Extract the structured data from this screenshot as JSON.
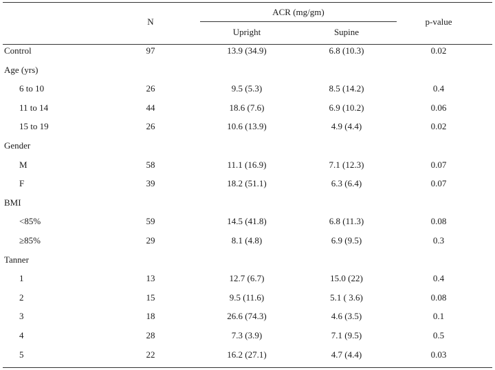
{
  "header": {
    "n": "N",
    "acr_group": "ACR (mg/gm)",
    "upright": "Upright",
    "supine": "Supine",
    "pvalue": "p-value"
  },
  "rows": [
    {
      "label": "Control",
      "indent": false,
      "n": "97",
      "upright": "13.9 (34.9)",
      "supine": "6.8 (10.3)",
      "p": "0.02"
    },
    {
      "label": "Age (yrs)",
      "indent": false,
      "n": "",
      "upright": "",
      "supine": "",
      "p": ""
    },
    {
      "label": "6 to 10",
      "indent": true,
      "n": "26",
      "upright": "9.5 (5.3)",
      "supine": "8.5 (14.2)",
      "p": "0.4"
    },
    {
      "label": "11 to 14",
      "indent": true,
      "n": "44",
      "upright": "18.6 (7.6)",
      "supine": "6.9 (10.2)",
      "p": "0.06"
    },
    {
      "label": "15 to 19",
      "indent": true,
      "n": "26",
      "upright": "10.6 (13.9)",
      "supine": "4.9 (4.4)",
      "p": "0.02"
    },
    {
      "label": "Gender",
      "indent": false,
      "n": "",
      "upright": "",
      "supine": "",
      "p": ""
    },
    {
      "label": "M",
      "indent": true,
      "n": "58",
      "upright": "11.1 (16.9)",
      "supine": "7.1 (12.3)",
      "p": "0.07"
    },
    {
      "label": "F",
      "indent": true,
      "n": "39",
      "upright": "18.2 (51.1)",
      "supine": "6.3 (6.4)",
      "p": "0.07"
    },
    {
      "label": "BMI",
      "indent": false,
      "n": "",
      "upright": "",
      "supine": "",
      "p": ""
    },
    {
      "label": "<85%",
      "indent": true,
      "n": "59",
      "upright": "14.5 (41.8)",
      "supine": "6.8 (11.3)",
      "p": "0.08"
    },
    {
      "label": "≥85%",
      "indent": true,
      "n": "29",
      "upright": "8.1 (4.8)",
      "supine": "6.9 (9.5)",
      "p": "0.3"
    },
    {
      "label": "Tanner",
      "indent": false,
      "n": "",
      "upright": "",
      "supine": "",
      "p": ""
    },
    {
      "label": "1",
      "indent": true,
      "n": "13",
      "upright": "12.7 (6.7)",
      "supine": "15.0 (22)",
      "p": "0.4"
    },
    {
      "label": "2",
      "indent": true,
      "n": "15",
      "upright": "9.5 (11.6)",
      "supine": "5.1 ( 3.6)",
      "p": "0.08"
    },
    {
      "label": "3",
      "indent": true,
      "n": "18",
      "upright": "26.6 (74.3)",
      "supine": "4.6 (3.5)",
      "p": "0.1"
    },
    {
      "label": "4",
      "indent": true,
      "n": "28",
      "upright": "7.3 (3.9)",
      "supine": "7.1 (9.5)",
      "p": "0.5"
    },
    {
      "label": "5",
      "indent": true,
      "n": "22",
      "upright": "16.2 (27.1)",
      "supine": "4.7 (4.4)",
      "p": "0.03"
    }
  ]
}
